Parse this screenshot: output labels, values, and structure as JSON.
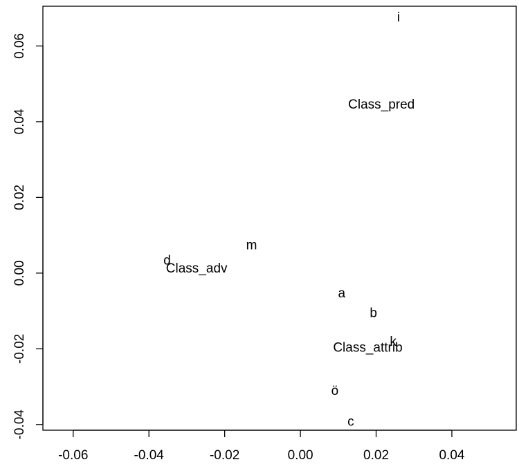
{
  "chart_data": {
    "type": "scatter",
    "title": "",
    "xlabel": "",
    "ylabel": "",
    "grid": false,
    "xlim": [
      -0.068,
      0.057
    ],
    "ylim": [
      -0.0415,
      0.0705
    ],
    "x_ticks": [
      {
        "value": -0.06,
        "label": "-0.06"
      },
      {
        "value": -0.04,
        "label": "-0.04"
      },
      {
        "value": -0.02,
        "label": "-0.02"
      },
      {
        "value": 0.0,
        "label": "0.00"
      },
      {
        "value": 0.02,
        "label": "0.02"
      },
      {
        "value": 0.04,
        "label": "0.04"
      }
    ],
    "y_ticks": [
      {
        "value": -0.04,
        "label": "-0.04"
      },
      {
        "value": -0.02,
        "label": "-0.02"
      },
      {
        "value": 0.0,
        "label": "0.00"
      },
      {
        "value": 0.02,
        "label": "0.02"
      },
      {
        "value": 0.04,
        "label": "0.04"
      },
      {
        "value": 0.06,
        "label": "0.06"
      }
    ],
    "points": [
      {
        "label": "i",
        "x": 0.0259,
        "y": 0.0675
      },
      {
        "label": "Class_pred",
        "x": 0.0214,
        "y": 0.0445
      },
      {
        "label": "m",
        "x": -0.0129,
        "y": 0.0073
      },
      {
        "label": "d",
        "x": -0.0352,
        "y": 0.0033
      },
      {
        "label": "Class_adv",
        "x": -0.0274,
        "y": 0.0012
      },
      {
        "label": "a",
        "x": 0.0109,
        "y": -0.0054
      },
      {
        "label": "b",
        "x": 0.0193,
        "y": -0.0106
      },
      {
        "label": "k",
        "x": 0.0245,
        "y": -0.0182
      },
      {
        "label": "Class_attrib",
        "x": 0.0178,
        "y": -0.0198
      },
      {
        "label": "ö",
        "x": 0.0091,
        "y": -0.0312
      },
      {
        "label": "c",
        "x": 0.0133,
        "y": -0.0393
      }
    ]
  }
}
